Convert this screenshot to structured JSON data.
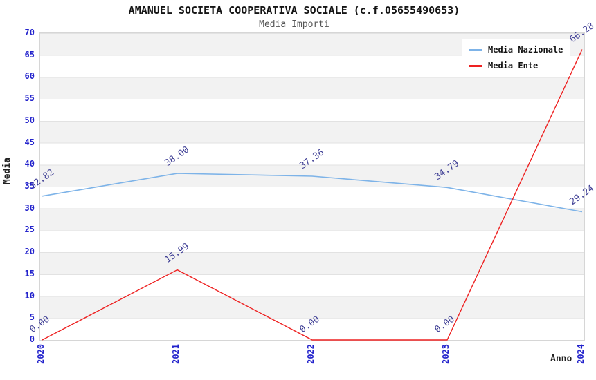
{
  "header": {
    "title": "AMANUEL SOCIETA COOPERATIVA SOCIALE (c.f.05655490653)",
    "subtitle": "Media Importi"
  },
  "chart_data": {
    "type": "line",
    "title": "AMANUEL SOCIETA COOPERATIVA SOCIALE (c.f.05655490653)",
    "subtitle": "Media Importi",
    "xlabel": "Anno",
    "ylabel": "Media",
    "categories": [
      "2020",
      "2021",
      "2022",
      "2023",
      "2024"
    ],
    "series": [
      {
        "name": "Media Nazionale",
        "color": "#7db3e8",
        "values": [
          32.82,
          38.0,
          37.36,
          34.79,
          29.24
        ],
        "point_labels": [
          "32.82",
          "38.00",
          "37.36",
          "34.79",
          "29.24"
        ]
      },
      {
        "name": "Media Ente",
        "color": "#ee2222",
        "values": [
          0.0,
          15.99,
          0.0,
          0.0,
          66.28
        ],
        "point_labels": [
          "0.00",
          "15.99",
          "0.00",
          "0.00",
          "66.28"
        ]
      }
    ],
    "ylim": [
      0,
      70
    ],
    "ytick_step": 5,
    "yticks": [
      0,
      5,
      10,
      15,
      20,
      25,
      30,
      35,
      40,
      45,
      50,
      55,
      60,
      65,
      70
    ],
    "grid": "horizontal-bands",
    "band_colors": [
      "#f2f2f2",
      "#ffffff"
    ],
    "gridline_color": "#e2e2e2",
    "tick_label_color": "#2323cc",
    "point_label_color": "#3d3d94",
    "legend_position": "top-right",
    "label_decimals": 2
  }
}
